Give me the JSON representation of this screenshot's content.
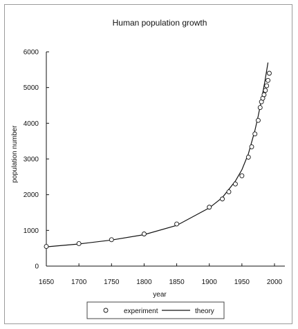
{
  "chart_data": {
    "type": "line",
    "title": "Human population growth",
    "xlabel": "year",
    "ylabel": "population number",
    "xlim": [
      1650,
      2000
    ],
    "ylim": [
      0,
      6000
    ],
    "x_ticks": [
      1650,
      1700,
      1750,
      1800,
      1850,
      1900,
      1950,
      2000
    ],
    "y_ticks": [
      0,
      1000,
      2000,
      3000,
      4000,
      5000,
      6000
    ],
    "legend_position": "bottom",
    "series": [
      {
        "name": "experiment",
        "style": "markers",
        "points": [
          {
            "x": 1650,
            "y": 550
          },
          {
            "x": 1700,
            "y": 630
          },
          {
            "x": 1750,
            "y": 740
          },
          {
            "x": 1800,
            "y": 900
          },
          {
            "x": 1850,
            "y": 1180
          },
          {
            "x": 1900,
            "y": 1650
          },
          {
            "x": 1920,
            "y": 1880
          },
          {
            "x": 1930,
            "y": 2080
          },
          {
            "x": 1940,
            "y": 2300
          },
          {
            "x": 1950,
            "y": 2530
          },
          {
            "x": 1960,
            "y": 3050
          },
          {
            "x": 1965,
            "y": 3340
          },
          {
            "x": 1970,
            "y": 3700
          },
          {
            "x": 1975,
            "y": 4080
          },
          {
            "x": 1978,
            "y": 4440
          },
          {
            "x": 1980,
            "y": 4600
          },
          {
            "x": 1982,
            "y": 4700
          },
          {
            "x": 1984,
            "y": 4800
          },
          {
            "x": 1986,
            "y": 4920
          },
          {
            "x": 1988,
            "y": 5050
          },
          {
            "x": 1990,
            "y": 5200
          },
          {
            "x": 1992,
            "y": 5400
          }
        ]
      },
      {
        "name": "theory",
        "style": "line",
        "points": [
          {
            "x": 1650,
            "y": 540
          },
          {
            "x": 1700,
            "y": 620
          },
          {
            "x": 1750,
            "y": 730
          },
          {
            "x": 1800,
            "y": 880
          },
          {
            "x": 1850,
            "y": 1140
          },
          {
            "x": 1900,
            "y": 1630
          },
          {
            "x": 1920,
            "y": 1920
          },
          {
            "x": 1940,
            "y": 2380
          },
          {
            "x": 1950,
            "y": 2700
          },
          {
            "x": 1960,
            "y": 3150
          },
          {
            "x": 1970,
            "y": 3800
          },
          {
            "x": 1975,
            "y": 4200
          },
          {
            "x": 1980,
            "y": 4650
          },
          {
            "x": 1985,
            "y": 5150
          },
          {
            "x": 1990,
            "y": 5700
          }
        ]
      }
    ]
  }
}
